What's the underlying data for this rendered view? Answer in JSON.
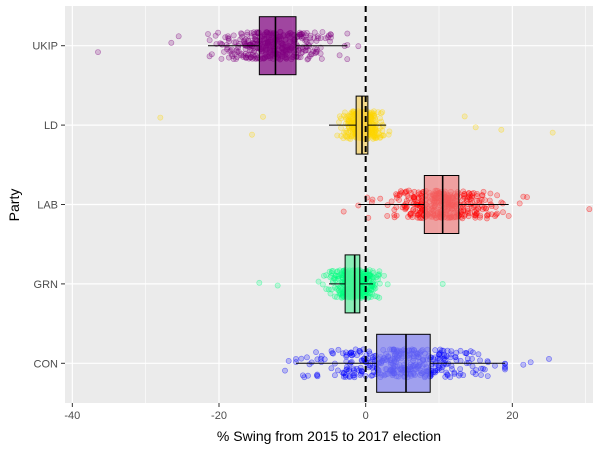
{
  "chart_data": {
    "type": "boxplot-jitter",
    "orientation": "horizontal",
    "xlabel": "% Swing from 2015 to 2017 election",
    "ylabel": "Party",
    "xlim": [
      -41,
      31
    ],
    "xticks": [
      -40,
      -20,
      0,
      20
    ],
    "xtick_labels": [
      "-40",
      "-20",
      "0",
      "20"
    ],
    "reference_line": {
      "x": 0,
      "style": "dashed",
      "color": "#000000"
    },
    "grid": true,
    "background": "#EBEBEB",
    "series": [
      {
        "name": "UKIP",
        "color": "#800080",
        "fill": "#800080",
        "whisker_low": -21.5,
        "q1": -14.5,
        "median": -12.3,
        "q3": -9.5,
        "whisker_high": -2.5,
        "outliers": [
          -36.5,
          -26.5,
          -25.5,
          -1.0
        ],
        "n": 380,
        "spread": [
          -21.5,
          -2.5
        ]
      },
      {
        "name": "LD",
        "color": "#FFD700",
        "fill": "#F5D060",
        "whisker_low": -5.0,
        "q1": -1.3,
        "median": -0.5,
        "q3": 0.3,
        "whisker_high": 2.8,
        "outliers": [
          -28.0,
          -15.5,
          -14.0,
          13.5,
          15.0,
          18.5,
          25.5
        ],
        "n": 380,
        "spread": [
          -8,
          10
        ]
      },
      {
        "name": "LAB",
        "color": "#FF0000",
        "fill": "#F08080",
        "whisker_low": -1.0,
        "q1": 8.0,
        "median": 10.5,
        "q3": 12.7,
        "whisker_high": 19.5,
        "outliers": [
          -3.0,
          21.0,
          21.5,
          22.0,
          30.5
        ],
        "n": 380,
        "spread": [
          -1,
          19.5
        ]
      },
      {
        "name": "GRN",
        "color": "#00FF7F",
        "fill": "#60F0A0",
        "whisker_low": -5.0,
        "q1": -2.8,
        "median": -1.5,
        "q3": -0.8,
        "whisker_high": 1.0,
        "outliers": [
          -14.5,
          -12.0,
          2.5,
          3.0,
          10.5
        ],
        "n": 380,
        "spread": [
          -10,
          3
        ]
      },
      {
        "name": "CON",
        "color": "#0000FF",
        "fill": "#8080F0",
        "whisker_low": -9.5,
        "q1": 1.5,
        "median": 5.5,
        "q3": 8.8,
        "whisker_high": 19.0,
        "outliers": [
          -11.0,
          -10.5,
          21.5,
          22.5,
          25.0
        ],
        "n": 380,
        "spread": [
          -9.5,
          19
        ]
      }
    ]
  }
}
